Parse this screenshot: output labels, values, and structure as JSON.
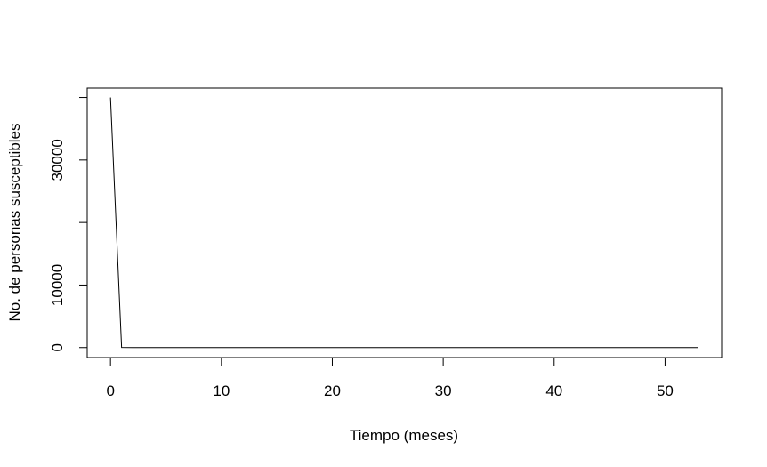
{
  "chart_data": {
    "type": "line",
    "title": "",
    "xlabel": "Tiempo (meses)",
    "ylabel": "No. de personas susceptibles",
    "xlim": [
      -2.1,
      55.1
    ],
    "ylim": [
      -1600,
      41500
    ],
    "x_ticks": [
      0,
      10,
      20,
      30,
      40,
      50
    ],
    "y_ticks": [
      0,
      10000,
      20000,
      30000,
      40000
    ],
    "y_tick_labels": [
      "0",
      "10000",
      "",
      "30000",
      ""
    ],
    "grid": false,
    "legend": "none",
    "series": [
      {
        "x": [
          0,
          1,
          2,
          3,
          4,
          5,
          6,
          7,
          8,
          9,
          10,
          11,
          12,
          13,
          14,
          15,
          16,
          17,
          18,
          19,
          20,
          21,
          22,
          23,
          24,
          25,
          26,
          27,
          28,
          29,
          30,
          31,
          32,
          33,
          34,
          35,
          36,
          37,
          38,
          39,
          40,
          41,
          42,
          43,
          44,
          45,
          46,
          47,
          48,
          49,
          50,
          51,
          52,
          53
        ],
        "values": [
          40000,
          15,
          0,
          0,
          0,
          0,
          0,
          0,
          0,
          0,
          0,
          0,
          0,
          0,
          0,
          0,
          0,
          0,
          0,
          0,
          0,
          0,
          0,
          0,
          0,
          0,
          0,
          0,
          0,
          0,
          0,
          0,
          0,
          0,
          0,
          0,
          0,
          0,
          0,
          0,
          0,
          0,
          0,
          0,
          0,
          0,
          0,
          0,
          0,
          0,
          0,
          0,
          0,
          0
        ],
        "color": "#000000"
      }
    ]
  }
}
